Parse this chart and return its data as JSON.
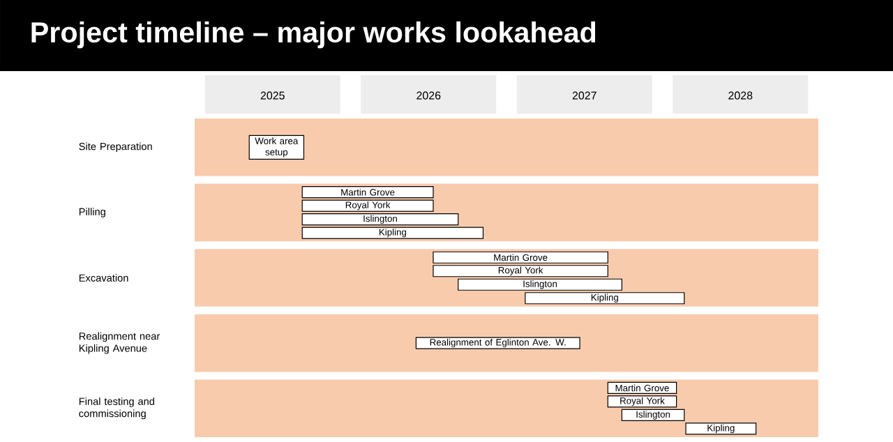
{
  "chart_data": {
    "type": "bar",
    "orientation": "horizontal",
    "title": "Project timeline – major works lookahead",
    "categories": [
      "Site Preparation",
      "Pilling",
      "Excavation",
      "Realignment near Kipling Avenue",
      "Final testing and commissioning"
    ],
    "series": [
      {
        "color": "#ffffff",
        "base": [
          2025.35,
          2025.69,
          2026.53,
          2026.42,
          2027.65
        ],
        "values": [
          0.35,
          0.84,
          1.12,
          1.05,
          0.44
        ],
        "value_labels": [
          "Work area setup",
          "Martin Grove",
          "Martin Grove",
          "Realignment of Eglinton Ave. W.",
          "Martin Grove"
        ]
      },
      {
        "color": "#ffffff",
        "base": [
          null,
          2025.69,
          2026.53,
          null,
          2027.65
        ],
        "values": [
          null,
          0.84,
          1.12,
          null,
          0.44
        ],
        "value_labels": [
          null,
          "Royal York",
          "Royal York",
          null,
          "Royal York"
        ]
      },
      {
        "color": "#ffffff",
        "base": [
          null,
          2025.69,
          2026.69,
          null,
          2027.74
        ],
        "values": [
          null,
          1.0,
          1.05,
          null,
          0.4
        ],
        "value_labels": [
          null,
          "Islington",
          "Islington",
          null,
          "Islington"
        ]
      },
      {
        "color": "#ffffff",
        "base": [
          null,
          2025.69,
          2027.12,
          null,
          2028.15
        ],
        "values": [
          null,
          1.16,
          1.02,
          null,
          0.45
        ],
        "value_labels": [
          null,
          "Kipling",
          "Kipling",
          null,
          "Kipling"
        ]
      }
    ],
    "bands": [
      {
        "axis": "y",
        "from": "Site Preparation",
        "to": "Site Preparation",
        "color": "#f8cbad"
      },
      {
        "axis": "y",
        "from": "Pilling",
        "to": "Pilling",
        "color": "#f8cbad"
      },
      {
        "axis": "y",
        "from": "Excavation",
        "to": "Excavation",
        "color": "#f8cbad"
      },
      {
        "axis": "y",
        "from": "Realignment near Kipling Avenue",
        "to": "Realignment near Kipling Avenue",
        "color": "#f8cbad"
      },
      {
        "axis": "y",
        "from": "Final testing and commissioning",
        "to": "Final testing and commissioning",
        "color": "#f8cbad"
      }
    ],
    "xlim": [
      2025,
      2029
    ],
    "xticks": [
      {
        "value": 2025.5,
        "label": "2025"
      },
      {
        "value": 2026.5,
        "label": "2026"
      },
      {
        "value": 2027.5,
        "label": "2027"
      },
      {
        "value": 2028.5,
        "label": "2028"
      }
    ]
  }
}
